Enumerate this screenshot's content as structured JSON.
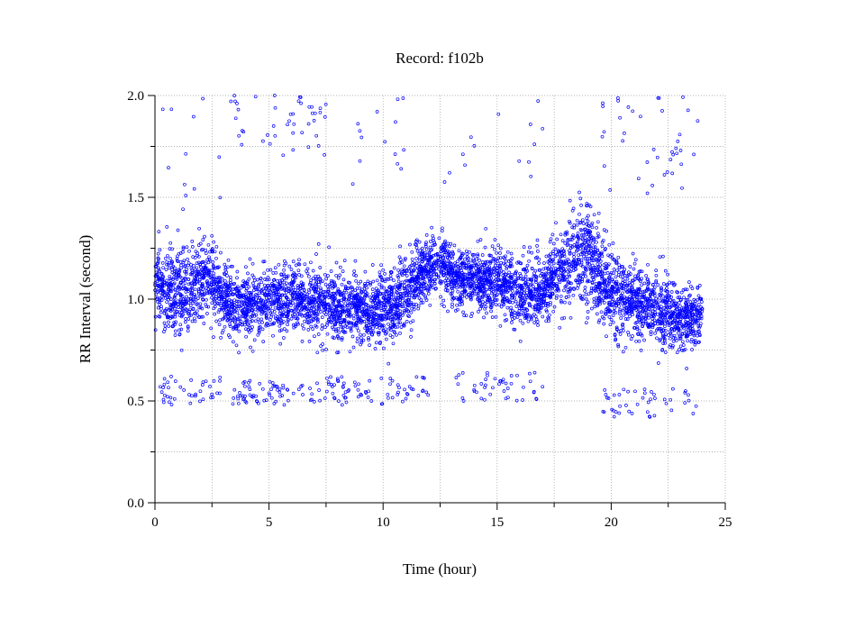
{
  "chart_data": {
    "type": "scatter",
    "title": "Record:  f102b",
    "xlabel": "Time (hour)",
    "ylabel": "RR Interval (second)",
    "xlim": [
      0,
      25
    ],
    "ylim": [
      0.0,
      2.0
    ],
    "x_ticks": [
      "0",
      "5",
      "10",
      "15",
      "20",
      "25"
    ],
    "y_ticks": [
      "0.0",
      "0.5",
      "1.0",
      "1.5",
      "2.0"
    ],
    "grid": true,
    "marker_color": "#0000ff",
    "series": [
      {
        "band_profile": {
          "hours": [
            0,
            0.5,
            1,
            1.5,
            2,
            2.5,
            3,
            3.5,
            4,
            4.5,
            5,
            5.5,
            6,
            6.5,
            7,
            7.5,
            8,
            8.5,
            9,
            9.5,
            10,
            10.5,
            11,
            11.5,
            12,
            12.5,
            13,
            13.5,
            14,
            14.5,
            15,
            15.5,
            16,
            16.5,
            17,
            17.5,
            18,
            18.5,
            19,
            19.5,
            20,
            20.5,
            21,
            21.5,
            22,
            22.5,
            23,
            23.5,
            24
          ],
          "center": [
            1.06,
            1.05,
            1.02,
            1.04,
            1.1,
            1.1,
            1.02,
            0.96,
            0.98,
            0.98,
            0.99,
            0.98,
            1.0,
            1.01,
            1.0,
            0.98,
            0.96,
            0.97,
            0.95,
            0.95,
            0.96,
            0.98,
            1.05,
            1.1,
            1.15,
            1.17,
            1.13,
            1.1,
            1.1,
            1.08,
            1.09,
            1.07,
            1.04,
            1.03,
            1.06,
            1.12,
            1.16,
            1.2,
            1.24,
            1.1,
            1.02,
            1.0,
            0.98,
            0.96,
            0.94,
            0.93,
            0.9,
            0.9,
            0.92
          ],
          "spread": [
            0.14,
            0.16,
            0.18,
            0.18,
            0.16,
            0.15,
            0.14,
            0.13,
            0.12,
            0.12,
            0.13,
            0.13,
            0.13,
            0.13,
            0.14,
            0.15,
            0.16,
            0.15,
            0.14,
            0.14,
            0.15,
            0.15,
            0.15,
            0.13,
            0.12,
            0.12,
            0.13,
            0.13,
            0.13,
            0.14,
            0.14,
            0.15,
            0.14,
            0.14,
            0.14,
            0.16,
            0.18,
            0.2,
            0.22,
            0.18,
            0.16,
            0.15,
            0.14,
            0.14,
            0.14,
            0.14,
            0.12,
            0.12,
            0.12
          ]
        },
        "outlier_clusters": [
          {
            "x_range": [
              0.2,
              3.0
            ],
            "y_range": [
              0.48,
              0.62
            ],
            "count": 40
          },
          {
            "x_range": [
              3.3,
              7.5
            ],
            "y_range": [
              0.48,
              0.6
            ],
            "count": 70
          },
          {
            "x_range": [
              7.5,
              12.0
            ],
            "y_range": [
              0.48,
              0.62
            ],
            "count": 70
          },
          {
            "x_range": [
              13.2,
              17.0
            ],
            "y_range": [
              0.5,
              0.64
            ],
            "count": 45
          },
          {
            "x_range": [
              19.5,
              24.0
            ],
            "y_range": [
              0.42,
              0.56
            ],
            "count": 45
          },
          {
            "x_range": [
              0.3,
              3.0
            ],
            "y_range": [
              1.4,
              2.0
            ],
            "count": 12
          },
          {
            "x_range": [
              3.3,
              7.5
            ],
            "y_range": [
              1.7,
              2.0
            ],
            "count": 45
          },
          {
            "x_range": [
              8.0,
              11.0
            ],
            "y_range": [
              1.55,
              2.0
            ],
            "count": 14
          },
          {
            "x_range": [
              12.5,
              17.5
            ],
            "y_range": [
              1.55,
              2.0
            ],
            "count": 14
          },
          {
            "x_range": [
              19.5,
              24.0
            ],
            "y_range": [
              1.5,
              2.0
            ],
            "count": 40
          }
        ]
      }
    ]
  }
}
